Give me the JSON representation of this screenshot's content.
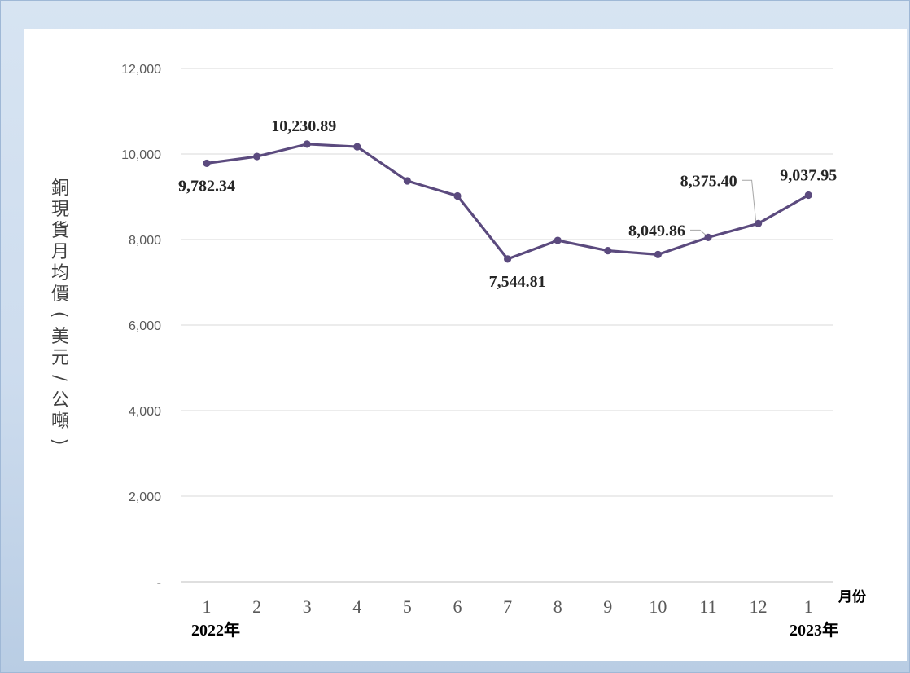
{
  "chart_data": {
    "type": "line",
    "title": "",
    "ylabel": "銅現貨月均價(美元/公噸)",
    "xlabel": "月份",
    "categories": [
      "1",
      "2",
      "3",
      "4",
      "5",
      "6",
      "7",
      "8",
      "9",
      "10",
      "11",
      "12",
      "1"
    ],
    "years": [
      "2022年",
      "2023年"
    ],
    "series": [
      {
        "values": [
          9782.34,
          9942,
          10230.89,
          10170,
          9372,
          9020,
          7544.81,
          7980,
          7740,
          7650,
          8049.86,
          8375.4,
          9037.95
        ],
        "color": "#5b4a7e"
      }
    ],
    "data_labels": [
      {
        "index": 0,
        "text": "9,782.34"
      },
      {
        "index": 2,
        "text": "10,230.89"
      },
      {
        "index": 6,
        "text": "7,544.81"
      },
      {
        "index": 10,
        "text": "8,049.86"
      },
      {
        "index": 11,
        "text": "8,375.40"
      },
      {
        "index": 12,
        "text": "9,037.95"
      }
    ],
    "yticks": [
      "-",
      "2,000",
      "4,000",
      "6,000",
      "8,000",
      "10,000",
      "12,000"
    ],
    "ylim": [
      0,
      12000
    ],
    "grid": true,
    "legend": "none"
  }
}
